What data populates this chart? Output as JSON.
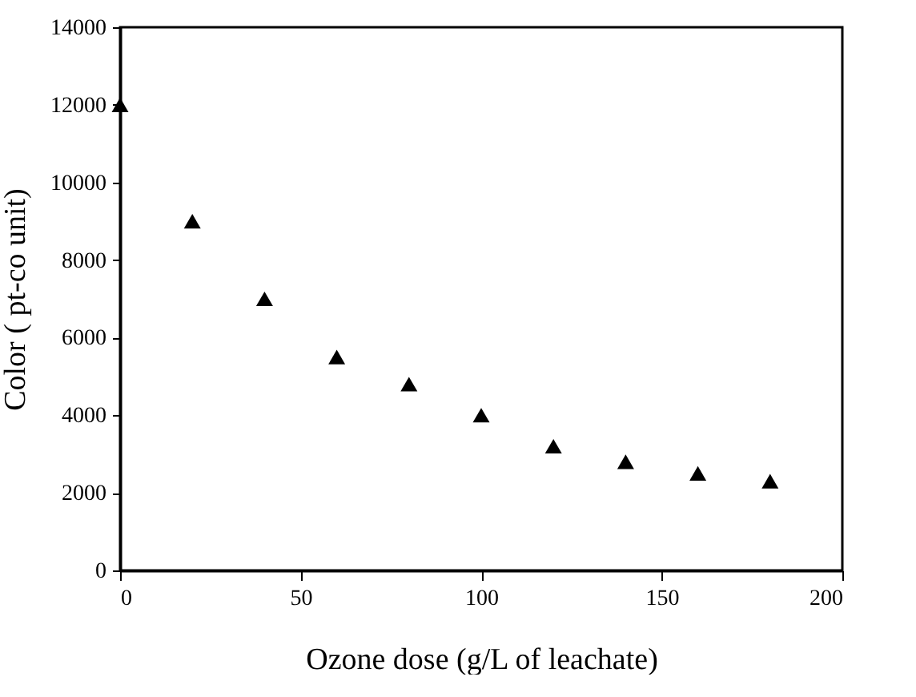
{
  "chart_data": {
    "type": "scatter",
    "xlabel": "Ozone dose (g/L of leachate)",
    "ylabel": "Color ( pt-co unit)",
    "x": [
      0,
      20,
      40,
      60,
      80,
      100,
      120,
      140,
      160,
      180
    ],
    "series": [
      {
        "color": "#000000",
        "values": [
          12000,
          9000,
          7000,
          5500,
          4800,
          4000,
          3200,
          2800,
          2500,
          2300
        ]
      }
    ],
    "xlim": [
      0,
      200
    ],
    "xticks": [
      0,
      50,
      100,
      150,
      200
    ],
    "ylim": [
      0,
      14000
    ],
    "yticks": [
      0,
      2000,
      4000,
      6000,
      8000,
      10000,
      12000,
      14000
    ],
    "marker": "triangle",
    "grid": false
  }
}
